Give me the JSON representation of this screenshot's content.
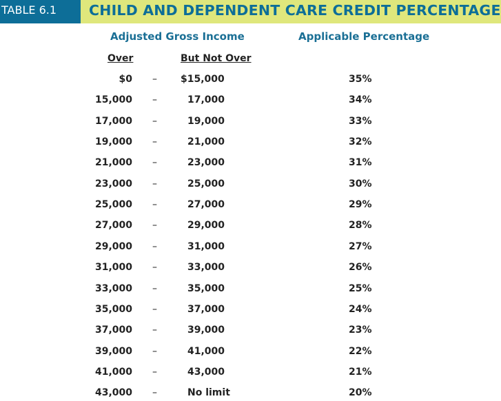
{
  "header": {
    "table_label": "TABLE 6.1",
    "title": "CHILD AND DEPENDENT CARE CREDIT PERCENTAGES"
  },
  "columns": {
    "agi_header": "Adjusted Gross Income",
    "pct_header": "Applicable Percentage",
    "over_header": "Over",
    "but_not_over_header": "But Not Over"
  },
  "rows": [
    {
      "over": "$0",
      "dash": "–",
      "but_not_over": "$15,000",
      "percentage": "35%"
    },
    {
      "over": "15,000",
      "dash": "–",
      "but_not_over": "17,000",
      "percentage": "34%"
    },
    {
      "over": "17,000",
      "dash": "–",
      "but_not_over": "19,000",
      "percentage": "33%"
    },
    {
      "over": "19,000",
      "dash": "–",
      "but_not_over": "21,000",
      "percentage": "32%"
    },
    {
      "over": "21,000",
      "dash": "–",
      "but_not_over": "23,000",
      "percentage": "31%"
    },
    {
      "over": "23,000",
      "dash": "–",
      "but_not_over": "25,000",
      "percentage": "30%"
    },
    {
      "over": "25,000",
      "dash": "–",
      "but_not_over": "27,000",
      "percentage": "29%"
    },
    {
      "over": "27,000",
      "dash": "–",
      "but_not_over": "29,000",
      "percentage": "28%"
    },
    {
      "over": "29,000",
      "dash": "–",
      "but_not_over": "31,000",
      "percentage": "27%"
    },
    {
      "over": "31,000",
      "dash": "–",
      "but_not_over": "33,000",
      "percentage": "26%"
    },
    {
      "over": "33,000",
      "dash": "–",
      "but_not_over": "35,000",
      "percentage": "25%"
    },
    {
      "over": "35,000",
      "dash": "–",
      "but_not_over": "37,000",
      "percentage": "24%"
    },
    {
      "over": "37,000",
      "dash": "–",
      "but_not_over": "39,000",
      "percentage": "23%"
    },
    {
      "over": "39,000",
      "dash": "–",
      "but_not_over": "41,000",
      "percentage": "22%"
    },
    {
      "over": "41,000",
      "dash": "–",
      "but_not_over": "43,000",
      "percentage": "21%"
    },
    {
      "over": "43,000",
      "dash": "–",
      "but_not_over": "No limit",
      "percentage": "20%"
    }
  ],
  "colors": {
    "label_background": "#0d6e98",
    "title_background": "#dfe77c",
    "title_text": "#0d6e98",
    "heading_text": "#1a6f95"
  }
}
